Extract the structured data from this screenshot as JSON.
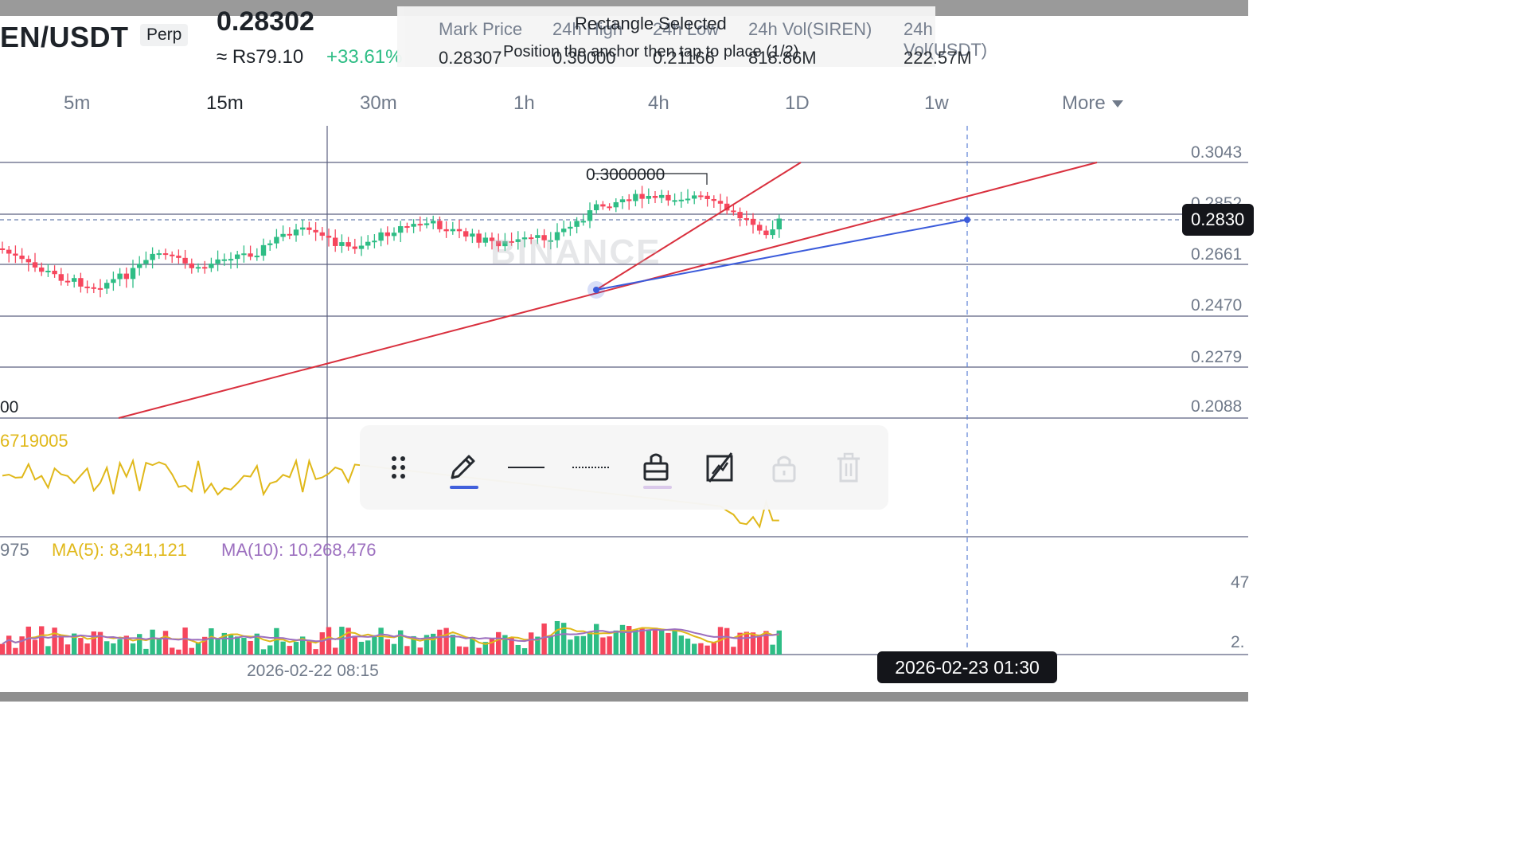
{
  "header": {
    "symbol": "EN/USDT",
    "contract_type": "Perp",
    "last_price": "0.28302",
    "fiat_price": "≈ Rs79.10",
    "change_pct": "+33.61%",
    "stats": [
      {
        "label": "Mark Price",
        "value": "0.28307"
      },
      {
        "label": "24h High",
        "value": "0.30000"
      },
      {
        "label": "24h Low",
        "value": "0.21166"
      },
      {
        "label": "24h Vol(SIREN)",
        "value": "818.86M"
      },
      {
        "label": "24h Vol(USDT)",
        "value": "222.57M"
      }
    ],
    "overlay_title": "Rectangle Selected",
    "overlay_hint": "Position the anchor then tap to place (1/2)"
  },
  "timeframes": [
    {
      "label": "5m",
      "active": false
    },
    {
      "label": "15m",
      "active": true
    },
    {
      "label": "30m",
      "active": false
    },
    {
      "label": "1h",
      "active": false
    },
    {
      "label": "4h",
      "active": false
    },
    {
      "label": "1D",
      "active": false
    },
    {
      "label": "1w",
      "active": false
    },
    {
      "label": "More",
      "active": false
    }
  ],
  "chart": {
    "price_axis": [
      "0.3043",
      "0.2852",
      "0.2661",
      "0.2470",
      "0.2279",
      "0.2088"
    ],
    "current_price_tag": "0.2830",
    "high_annotation": "0.3000000",
    "left_partial_label": "00",
    "watermark": "BINANCE",
    "time_axis_label": "2026-02-22 08:15",
    "crosshair_time": "2026-02-23 01:30"
  },
  "indicators": {
    "osc_value": "6719005",
    "vol_value": "975",
    "ma5": "MA(5): 8,341,121",
    "ma10": "MA(10): 10,268,476",
    "vol_axis_top": "47",
    "vol_axis_bottom": "2."
  },
  "toolbar": {
    "items": [
      "drag-handle",
      "pencil",
      "solid-line",
      "dotted-line",
      "fill-style",
      "hide-drawing",
      "lock",
      "delete"
    ]
  },
  "colors": {
    "up": "#2ebd85",
    "down": "#f6465d",
    "trendline": "#d9303e",
    "anchor_line": "#3b5bdb",
    "osc_line": "#e0b81a",
    "ma5": "#e0b81a",
    "ma10": "#9c6fbf"
  }
}
